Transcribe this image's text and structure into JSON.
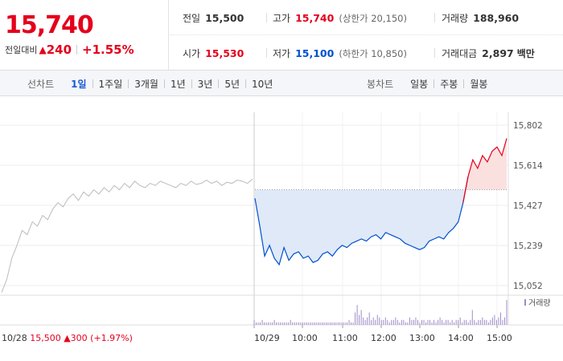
{
  "summary": {
    "price": "15,740",
    "change_label": "전일대비",
    "change_arrow": "▲",
    "change_value": "240",
    "change_pct": "+1.55%"
  },
  "stats": {
    "prev_close": {
      "label": "전일",
      "value": "15,500"
    },
    "high": {
      "label": "고가",
      "value": "15,740",
      "sub": "(상한가 20,150)"
    },
    "volume": {
      "label": "거래량",
      "value": "188,960"
    },
    "open": {
      "label": "시가",
      "value": "15,530"
    },
    "low": {
      "label": "저가",
      "value": "15,100",
      "sub": "(하한가 10,850)"
    },
    "amount": {
      "label": "거래대금",
      "value": "2,897",
      "unit": "백만"
    }
  },
  "line_tabs": {
    "title": "선차트",
    "items": [
      "1일",
      "1주일",
      "3개월",
      "1년",
      "3년",
      "5년",
      "10년"
    ],
    "active": "1일"
  },
  "candle_tabs": {
    "title": "봉차트",
    "items": [
      "일봉",
      "주봉",
      "월봉"
    ]
  },
  "colors": {
    "up": "#e4001c",
    "down": "#0050d0",
    "prev_line": "#bbbbbb",
    "fill_down": "#dfe9f8",
    "fill_up": "#fbe0e0",
    "volume": "#9f8cc9"
  },
  "chart_data": {
    "type": "line",
    "y_ticks": [
      "15,802",
      "15,614",
      "15,427",
      "15,239",
      "15,052"
    ],
    "ylim": [
      15052,
      15802
    ],
    "base_price": 15500,
    "x_ticks": [
      "10/29",
      "10:00",
      "11:00",
      "12:00",
      "13:00",
      "14:00",
      "15:00"
    ],
    "prev_day_label": {
      "date": "10/28",
      "price": "15,500",
      "arrow": "▲",
      "change": "300",
      "pct": "(+1.97%)"
    },
    "volume_legend": "거래량",
    "prev_day_series": [
      15020,
      15080,
      15180,
      15240,
      15310,
      15290,
      15350,
      15330,
      15380,
      15360,
      15410,
      15440,
      15420,
      15460,
      15480,
      15450,
      15490,
      15470,
      15500,
      15480,
      15510,
      15490,
      15520,
      15500,
      15530,
      15510,
      15540,
      15520,
      15510,
      15530,
      15520,
      15540,
      15530,
      15520,
      15510,
      15530,
      15520,
      15540,
      15525,
      15530,
      15545,
      15530,
      15540,
      15520,
      15535,
      15530,
      15545,
      15540,
      15530,
      15550
    ],
    "today_series": [
      15460,
      15330,
      15190,
      15240,
      15180,
      15150,
      15230,
      15170,
      15200,
      15210,
      15180,
      15190,
      15160,
      15170,
      15200,
      15210,
      15190,
      15220,
      15240,
      15230,
      15250,
      15260,
      15270,
      15260,
      15280,
      15290,
      15270,
      15300,
      15290,
      15280,
      15270,
      15250,
      15240,
      15230,
      15220,
      15230,
      15260,
      15270,
      15280,
      15270,
      15300,
      15320,
      15350,
      15440,
      15560,
      15640,
      15600,
      15660,
      15630,
      15680,
      15700,
      15660,
      15740
    ],
    "volume": [
      2,
      1,
      1,
      1,
      2,
      1,
      1,
      1,
      1,
      1,
      2,
      1,
      1,
      1,
      1,
      1,
      1,
      1,
      2,
      1,
      1,
      1,
      1,
      1,
      1,
      1,
      1,
      1,
      1,
      1,
      1,
      1,
      1,
      1,
      1,
      1,
      1,
      1,
      1,
      1,
      1,
      1,
      1,
      1,
      1,
      1,
      1,
      2,
      1,
      1,
      5,
      8,
      4,
      6,
      3,
      2,
      3,
      5,
      2,
      3,
      2,
      4,
      3,
      2,
      2,
      3,
      2,
      1,
      2,
      2,
      3,
      2,
      1,
      2,
      2,
      1,
      1,
      3,
      2,
      2,
      3,
      2,
      1,
      2,
      2,
      1,
      2,
      2,
      1,
      2,
      1,
      2,
      3,
      2,
      1,
      2,
      2,
      1,
      2,
      1,
      2,
      2,
      3,
      1,
      2,
      2,
      1,
      2,
      6,
      2,
      1,
      2,
      2,
      3,
      2,
      2,
      1,
      2,
      3,
      4,
      2,
      3,
      5,
      2,
      3,
      10
    ]
  }
}
